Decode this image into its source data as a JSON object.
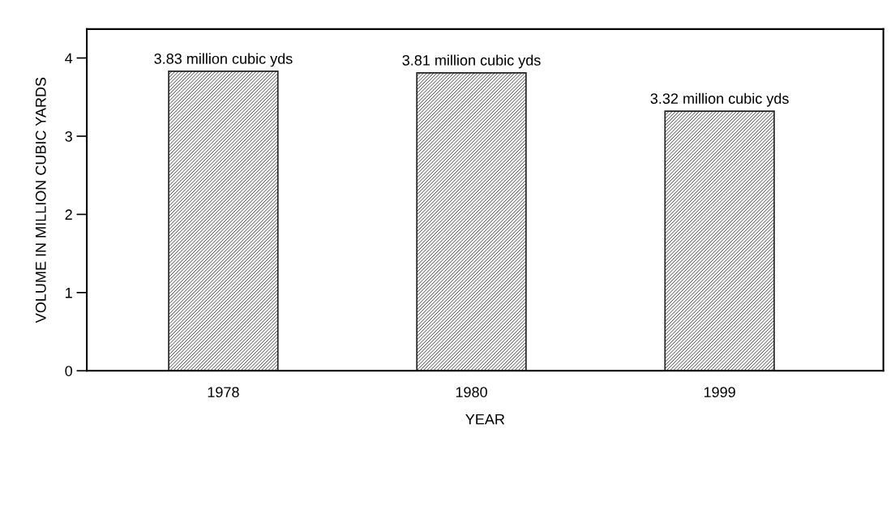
{
  "chart_data": {
    "type": "bar",
    "xlabel": "YEAR",
    "ylabel": "VOLUME IN MILLION CUBIC YARDS",
    "categories": [
      "1978",
      "1980",
      "1999"
    ],
    "values": [
      3.83,
      3.81,
      3.32
    ],
    "value_labels": [
      "3.83 million cubic yds",
      "3.81 million cubic yds",
      "3.32 million cubic yds"
    ],
    "color": "#222222",
    "ylim": [
      0,
      4.37
    ],
    "yticks": [
      0,
      1,
      2,
      3,
      4
    ],
    "grid": false
  }
}
